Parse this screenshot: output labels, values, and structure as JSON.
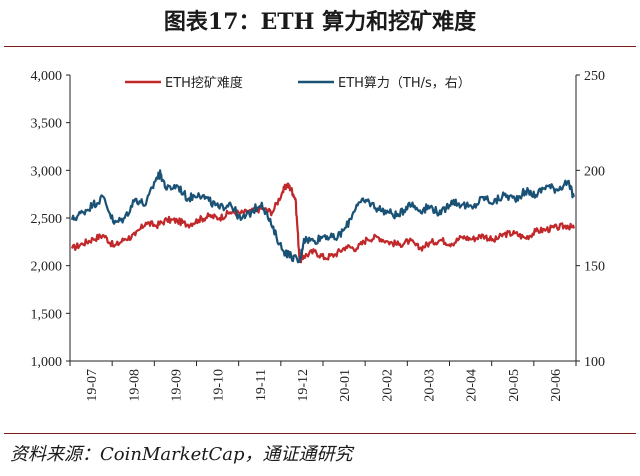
{
  "title": "图表17：ETH 算力和挖矿难度",
  "source": "资料来源：CoinMarketCap，通证通研究",
  "chart_data": {
    "type": "line",
    "x_categories": [
      "19-07",
      "19-08",
      "19-09",
      "19-10",
      "19-11",
      "19-12",
      "20-01",
      "20-02",
      "20-03",
      "20-04",
      "20-05",
      "20-06"
    ],
    "y_left": {
      "ticks": [
        "4,000",
        "3,500",
        "3,000",
        "2,500",
        "2,000",
        "1,500",
        "1,000"
      ],
      "range": [
        1000,
        4000
      ]
    },
    "y_right": {
      "ticks": [
        "250",
        "200",
        "150",
        "100"
      ],
      "range": [
        100,
        250
      ]
    },
    "legend_placement": "top",
    "series": [
      {
        "name": "ETH挖矿难度",
        "axis": "left",
        "color": "#c0282a",
        "x": [
          0.0,
          0.25,
          0.5,
          0.75,
          1.0,
          1.25,
          1.5,
          1.75,
          2.0,
          2.25,
          2.5,
          2.75,
          3.0,
          3.25,
          3.5,
          3.75,
          4.0,
          4.25,
          4.5,
          4.75,
          5.0,
          5.1,
          5.2,
          5.3,
          5.4,
          5.5,
          5.75,
          6.0,
          6.25,
          6.5,
          6.75,
          7.0,
          7.25,
          7.5,
          7.75,
          8.0,
          8.25,
          8.5,
          8.75,
          9.0,
          9.25,
          9.5,
          9.75,
          10.0,
          10.25,
          10.5,
          10.75,
          11.0,
          11.25,
          11.5,
          11.75,
          11.9
        ],
        "values": [
          2180,
          2230,
          2280,
          2320,
          2200,
          2280,
          2320,
          2450,
          2420,
          2480,
          2470,
          2430,
          2480,
          2520,
          2500,
          2560,
          2550,
          2570,
          2600,
          2560,
          2780,
          2850,
          2800,
          2700,
          2050,
          2100,
          2150,
          2080,
          2120,
          2200,
          2180,
          2280,
          2300,
          2250,
          2220,
          2260,
          2180,
          2240,
          2270,
          2230,
          2300,
          2280,
          2320,
          2260,
          2330,
          2340,
          2290,
          2360,
          2380,
          2400,
          2420,
          2390
        ]
      },
      {
        "name": "ETH算力（TH/s，右）",
        "axis": "right",
        "color": "#1a5276",
        "x": [
          0.0,
          0.25,
          0.5,
          0.75,
          1.0,
          1.25,
          1.5,
          1.75,
          2.0,
          2.1,
          2.25,
          2.5,
          2.75,
          3.0,
          3.25,
          3.5,
          3.75,
          4.0,
          4.25,
          4.5,
          4.75,
          5.0,
          5.2,
          5.4,
          5.5,
          5.75,
          6.0,
          6.25,
          6.5,
          6.75,
          7.0,
          7.25,
          7.5,
          7.75,
          8.0,
          8.25,
          8.5,
          8.75,
          9.0,
          9.25,
          9.5,
          9.75,
          10.0,
          10.25,
          10.5,
          10.75,
          11.0,
          11.25,
          11.5,
          11.75,
          11.9
        ],
        "values": [
          174,
          178,
          182,
          186,
          172,
          175,
          185,
          182,
          196,
          198,
          190,
          192,
          185,
          188,
          184,
          180,
          183,
          174,
          178,
          183,
          170,
          158,
          155,
          152,
          164,
          163,
          166,
          164,
          170,
          182,
          184,
          180,
          178,
          176,
          183,
          179,
          181,
          177,
          184,
          182,
          180,
          186,
          183,
          187,
          185,
          189,
          187,
          192,
          190,
          194,
          186
        ]
      }
    ]
  }
}
